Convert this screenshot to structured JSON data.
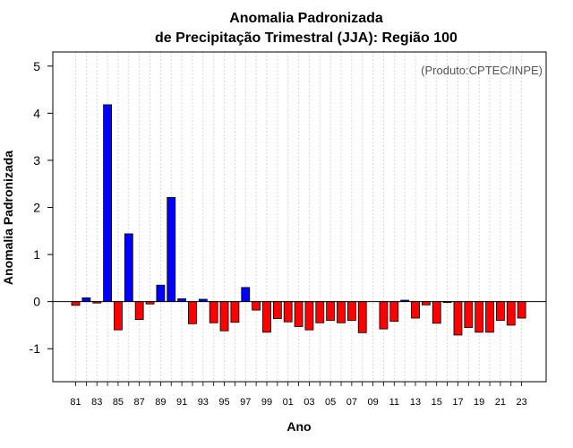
{
  "chart_data": {
    "type": "bar",
    "title": "Anomalia Padronizada",
    "subtitle": "de Precipitação Trimestral (JJA): Região 100",
    "xlabel": "Ano",
    "ylabel": "Anomalia Padronizada",
    "annotation": "(Produto:CPTEC/INPE)",
    "ylim": [
      -1.7,
      5.3
    ],
    "yticks": [
      -1,
      0,
      1,
      2,
      3,
      4,
      5
    ],
    "xtick_labels": [
      "81",
      "83",
      "85",
      "87",
      "89",
      "91",
      "93",
      "95",
      "97",
      "99",
      "01",
      "03",
      "05",
      "07",
      "09",
      "11",
      "13",
      "15",
      "17",
      "19",
      "21",
      "23"
    ],
    "grid": "vertical-dashed",
    "colors": {
      "positive": "#0000ff",
      "negative": "#ff0000"
    },
    "categories": [
      "1981",
      "1982",
      "1983",
      "1984",
      "1985",
      "1986",
      "1987",
      "1988",
      "1989",
      "1990",
      "1991",
      "1992",
      "1993",
      "1994",
      "1995",
      "1996",
      "1997",
      "1998",
      "1999",
      "2000",
      "2001",
      "2002",
      "2003",
      "2004",
      "2005",
      "2006",
      "2007",
      "2008",
      "2009",
      "2010",
      "2011",
      "2012",
      "2013",
      "2014",
      "2015",
      "2016",
      "2017",
      "2018",
      "2019",
      "2020",
      "2021",
      "2022",
      "2023"
    ],
    "values": [
      -0.08,
      0.08,
      -0.03,
      4.18,
      -0.6,
      1.44,
      -0.38,
      -0.05,
      0.35,
      2.21,
      0.06,
      -0.47,
      0.05,
      -0.45,
      -0.62,
      -0.44,
      0.3,
      -0.18,
      -0.65,
      -0.36,
      -0.43,
      -0.53,
      -0.6,
      -0.45,
      -0.4,
      -0.45,
      -0.4,
      -0.66,
      0.0,
      -0.58,
      -0.42,
      0.03,
      -0.35,
      -0.07,
      -0.46,
      -0.02,
      -0.71,
      -0.55,
      -0.65,
      -0.65,
      -0.4,
      -0.5,
      -0.35
    ]
  }
}
